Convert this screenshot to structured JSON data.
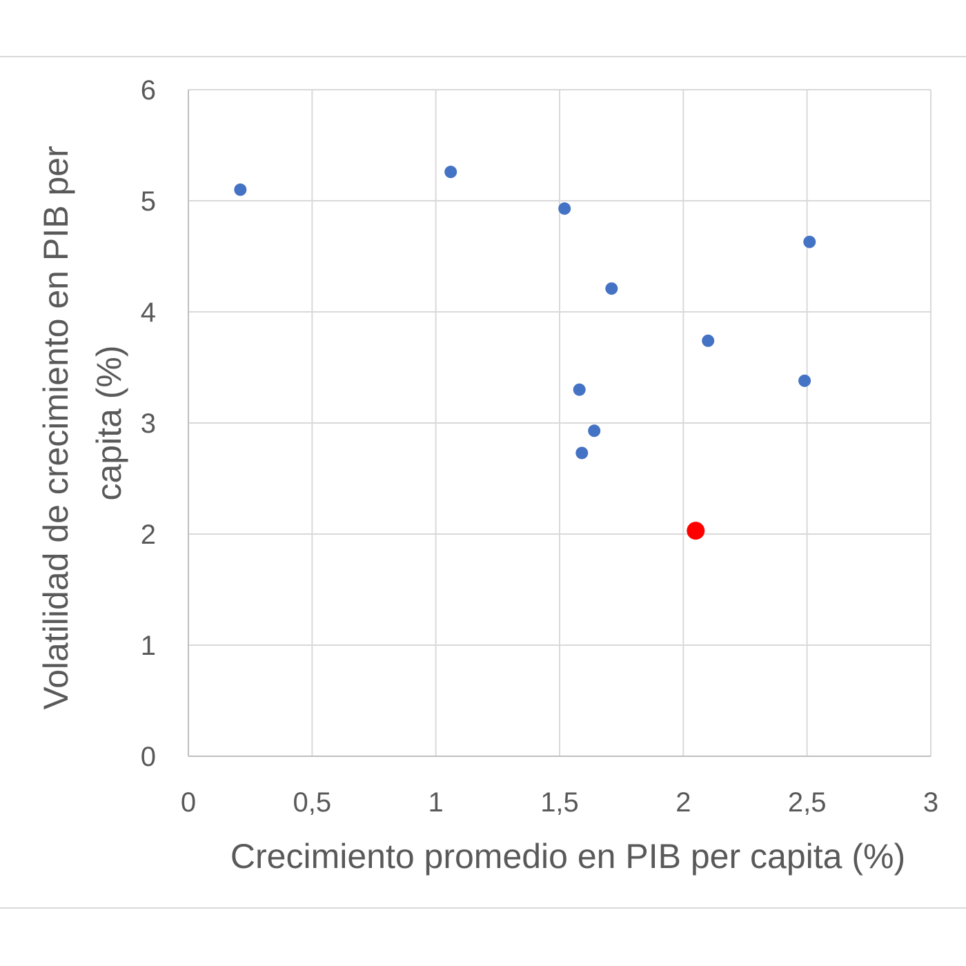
{
  "chart_data": {
    "type": "scatter",
    "title": "",
    "xlabel": "Crecimiento promedio en PIB per capita (%)",
    "ylabel_lines": [
      "Volatilidad de crecimiento en PIB per",
      "capita (%)"
    ],
    "xlim": [
      0,
      3
    ],
    "ylim": [
      0,
      6
    ],
    "x_ticks": [
      0,
      0.5,
      1,
      1.5,
      2,
      2.5,
      3
    ],
    "x_tick_labels": [
      "0",
      "0,5",
      "1",
      "1,5",
      "2",
      "2,5",
      "3"
    ],
    "y_ticks": [
      0,
      1,
      2,
      3,
      4,
      5,
      6
    ],
    "y_tick_labels": [
      "0",
      "1",
      "2",
      "3",
      "4",
      "5",
      "6"
    ],
    "grid": true,
    "legend": "none",
    "series": [
      {
        "color": "#4472c4",
        "points": [
          {
            "x": 0.21,
            "y": 5.1
          },
          {
            "x": 1.06,
            "y": 5.26
          },
          {
            "x": 1.52,
            "y": 4.93
          },
          {
            "x": 1.71,
            "y": 4.21
          },
          {
            "x": 2.51,
            "y": 4.63
          },
          {
            "x": 2.1,
            "y": 3.74
          },
          {
            "x": 2.49,
            "y": 3.38
          },
          {
            "x": 1.58,
            "y": 3.3
          },
          {
            "x": 1.64,
            "y": 2.93
          },
          {
            "x": 1.59,
            "y": 2.73
          }
        ]
      },
      {
        "color": "#ff0000",
        "highlight": true,
        "points": [
          {
            "x": 2.05,
            "y": 2.03
          }
        ]
      }
    ]
  }
}
